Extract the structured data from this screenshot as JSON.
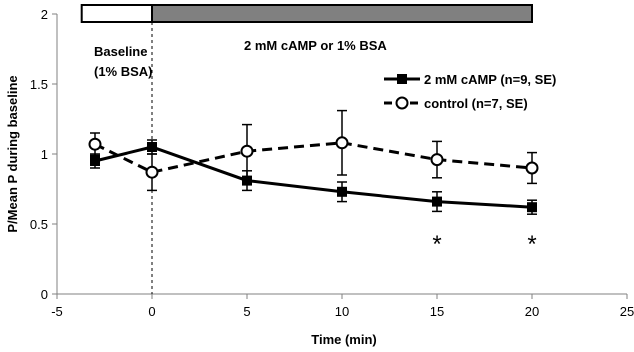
{
  "chart_data": {
    "type": "line",
    "xlabel": "Time (min)",
    "ylabel": "P/Mean P during baseline",
    "xlim": [
      -5,
      25
    ],
    "ylim": [
      0,
      2
    ],
    "xticks": [
      -5,
      0,
      5,
      10,
      15,
      20,
      25
    ],
    "yticks": [
      0,
      0.5,
      1,
      1.5,
      2
    ],
    "xtick_labels": [
      "-5",
      "0",
      "5",
      "10",
      "15",
      "20",
      "25"
    ],
    "ytick_labels": [
      "0",
      "0.5",
      "1",
      "1.5",
      "2"
    ],
    "grid": false,
    "legend_position": "top-right",
    "series": [
      {
        "name": "2 mM cAMP (n=9, SE)",
        "style": "solid",
        "marker": "filled-square",
        "color": "#000000",
        "x": [
          -3,
          0,
          5,
          10,
          15,
          20
        ],
        "y": [
          0.95,
          1.05,
          0.81,
          0.73,
          0.66,
          0.62
        ],
        "err": [
          0.05,
          0.05,
          0.07,
          0.07,
          0.07,
          0.05
        ]
      },
      {
        "name": "control (n=7, SE)",
        "style": "dashed",
        "marker": "open-circle",
        "color": "#000000",
        "x": [
          -3,
          0,
          5,
          10,
          15,
          20
        ],
        "y": [
          1.07,
          0.87,
          1.02,
          1.08,
          0.96,
          0.9
        ],
        "err": [
          0.08,
          0.13,
          0.19,
          0.23,
          0.13,
          0.11
        ]
      }
    ],
    "annotations": {
      "baseline_label_line1": "Baseline",
      "baseline_label_line2": "(1% BSA)",
      "treatment_label": "2 mM cAMP or 1% BSA",
      "significance_mark": "*",
      "significance_x": [
        15,
        20
      ]
    },
    "condition_bar": {
      "baseline_range": [
        -3.7,
        0
      ],
      "treatment_range": [
        0,
        20
      ],
      "baseline_color": "#ffffff",
      "treatment_color": "#808080"
    },
    "vline_x": 0
  }
}
